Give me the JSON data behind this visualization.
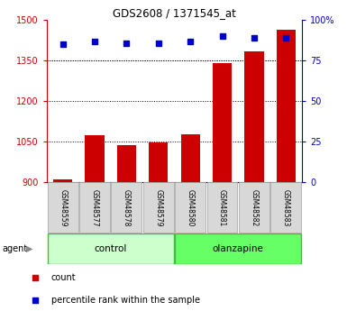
{
  "title": "GDS2608 / 1371545_at",
  "samples": [
    "GSM48559",
    "GSM48577",
    "GSM48578",
    "GSM48579",
    "GSM48580",
    "GSM48581",
    "GSM48582",
    "GSM48583"
  ],
  "counts": [
    910,
    1075,
    1037,
    1047,
    1078,
    1340,
    1385,
    1465
  ],
  "percentile_ranks": [
    85,
    87,
    86,
    86,
    87,
    90,
    89,
    89
  ],
  "ylim_left": [
    900,
    1500
  ],
  "ylim_right": [
    0,
    100
  ],
  "yticks_left": [
    900,
    1050,
    1200,
    1350,
    1500
  ],
  "yticks_right": [
    0,
    25,
    50,
    75,
    100
  ],
  "bar_color": "#cc0000",
  "dot_color": "#0000cc",
  "control_color": "#ccffcc",
  "olanzapine_color": "#66ff66",
  "title_color": "#000000",
  "left_tick_color": "#cc0000",
  "right_tick_color": "#0000cc",
  "agent_label": "agent",
  "legend_count_label": "count",
  "legend_percentile_label": "percentile rank within the sample",
  "figsize": [
    3.85,
    3.45
  ],
  "dpi": 100
}
